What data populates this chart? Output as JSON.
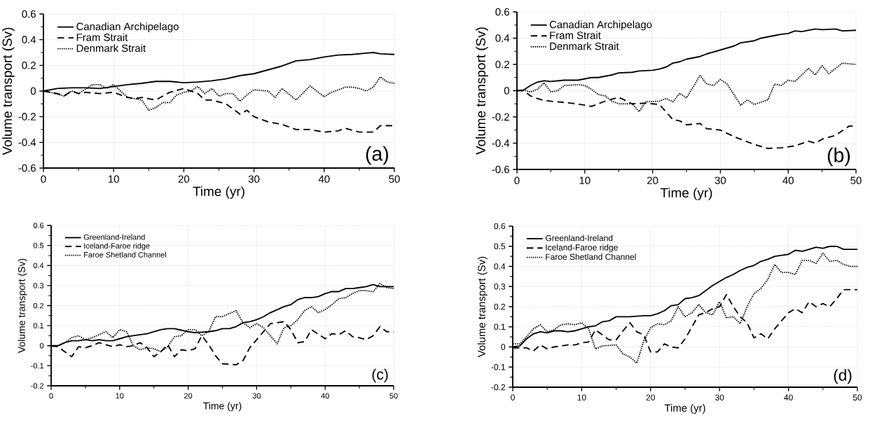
{
  "chart_data": [
    {
      "type": "line",
      "xlabel": "Time (yr)",
      "ylabel": "Volume transport (Sv)",
      "xlim": [
        0,
        50
      ],
      "ylim": [
        -0.6,
        0.6
      ],
      "xticks": [
        0,
        10,
        20,
        30,
        40,
        50
      ],
      "yticks": [
        -0.6,
        -0.4,
        -0.2,
        0,
        0.2,
        0.4,
        0.6
      ],
      "grid": true,
      "legend": "top left",
      "annotations": [
        "(a)"
      ],
      "series": [
        {
          "name": "Canadian Archipelago",
          "color": "#000000",
          "line_style": "solid",
          "x": [
            0,
            2,
            4,
            6,
            8,
            10,
            12,
            14,
            16,
            18,
            20,
            22,
            24,
            26,
            28,
            30,
            32,
            34,
            36,
            38,
            40,
            42,
            44,
            46,
            47,
            48,
            50
          ],
          "values": [
            0,
            0.02,
            0.025,
            0.025,
            0.02,
            0.035,
            0.05,
            0.06,
            0.075,
            0.075,
            0.065,
            0.07,
            0.08,
            0.095,
            0.12,
            0.135,
            0.165,
            0.195,
            0.235,
            0.245,
            0.265,
            0.28,
            0.285,
            0.295,
            0.3,
            0.29,
            0.285
          ]
        },
        {
          "name": "Fram Strait",
          "color": "#000000",
          "line_style": "dashed",
          "x": [
            0,
            2,
            3,
            4,
            5,
            6,
            8,
            10,
            12,
            13,
            14,
            16,
            18,
            20,
            22,
            23,
            24,
            26,
            28,
            29,
            30,
            32,
            34,
            36,
            38,
            40,
            42,
            43,
            45,
            47,
            48,
            50
          ],
          "values": [
            0,
            -0.02,
            -0.035,
            0,
            -0.02,
            -0.01,
            -0.02,
            -0.01,
            -0.05,
            -0.06,
            -0.05,
            -0.07,
            -0.01,
            0.02,
            -0.02,
            -0.07,
            -0.07,
            -0.1,
            -0.18,
            -0.15,
            -0.2,
            -0.24,
            -0.26,
            -0.3,
            -0.3,
            -0.32,
            -0.31,
            -0.29,
            -0.32,
            -0.32,
            -0.27,
            -0.27
          ]
        },
        {
          "name": "Denmark Strait",
          "color": "#000000",
          "line_style": "dotted",
          "x": [
            0,
            1,
            3,
            4,
            5,
            7,
            8,
            9,
            10,
            11,
            12,
            14,
            15,
            16,
            17,
            18,
            19,
            20,
            21,
            22,
            23,
            24,
            25,
            26,
            27,
            28,
            29,
            30,
            32,
            33,
            34,
            36,
            38,
            40,
            41,
            43,
            44,
            45,
            46,
            47,
            48,
            49,
            50
          ],
          "values": [
            0,
            -0.01,
            -0.04,
            0,
            -0.02,
            0.05,
            0.05,
            0.02,
            0.05,
            0,
            -0.05,
            -0.07,
            -0.15,
            -0.13,
            -0.09,
            -0.09,
            -0.03,
            -0.01,
            0,
            0.035,
            -0.02,
            0.02,
            -0.04,
            -0.02,
            -0.02,
            -0.08,
            -0.03,
            0.01,
            0,
            -0.05,
            0.02,
            -0.07,
            0.04,
            -0.045,
            -0.01,
            0.03,
            0.03,
            0.02,
            0,
            0.03,
            0.11,
            0.07,
            0.06
          ]
        }
      ]
    },
    {
      "type": "line",
      "xlabel": "Time (yr)",
      "ylabel": "Volume transport (Sv)",
      "xlim": [
        0,
        50
      ],
      "ylim": [
        -0.6,
        0.6
      ],
      "xticks": [
        0,
        10,
        20,
        30,
        40,
        50
      ],
      "yticks": [
        -0.6,
        -0.4,
        -0.2,
        0,
        0.2,
        0.4,
        0.6
      ],
      "grid": true,
      "legend": "top left",
      "annotations": [
        "(b)"
      ],
      "series": [
        {
          "name": "Canadian Archipelago",
          "color": "#000000",
          "line_style": "solid",
          "x": [
            0,
            1,
            2,
            3,
            4,
            5,
            7,
            9,
            11,
            12,
            14,
            15,
            17,
            18,
            20,
            21,
            22,
            23,
            24,
            25,
            27,
            28,
            30,
            32,
            33,
            35,
            36,
            38,
            39,
            40,
            41,
            42,
            44,
            45,
            47,
            48,
            50
          ],
          "values": [
            0,
            0.005,
            0.04,
            0.065,
            0.075,
            0.07,
            0.08,
            0.08,
            0.1,
            0.1,
            0.12,
            0.135,
            0.14,
            0.15,
            0.155,
            0.165,
            0.18,
            0.21,
            0.22,
            0.24,
            0.26,
            0.28,
            0.31,
            0.34,
            0.365,
            0.38,
            0.4,
            0.42,
            0.43,
            0.435,
            0.455,
            0.45,
            0.47,
            0.465,
            0.47,
            0.455,
            0.46
          ]
        },
        {
          "name": "Fram Strait",
          "color": "#000000",
          "line_style": "dashed",
          "x": [
            0,
            1,
            2,
            3,
            4,
            6,
            8,
            10,
            11,
            13,
            15,
            17,
            19,
            21,
            23,
            24,
            25,
            27,
            28,
            30,
            32,
            33,
            35,
            37,
            39,
            41,
            43,
            44,
            45,
            47,
            49,
            50
          ],
          "values": [
            0,
            0,
            -0.04,
            -0.06,
            -0.075,
            -0.085,
            -0.095,
            -0.11,
            -0.12,
            -0.08,
            -0.05,
            -0.1,
            -0.095,
            -0.105,
            -0.22,
            -0.23,
            -0.26,
            -0.25,
            -0.29,
            -0.3,
            -0.35,
            -0.37,
            -0.41,
            -0.44,
            -0.435,
            -0.42,
            -0.385,
            -0.4,
            -0.37,
            -0.34,
            -0.27,
            -0.27
          ]
        },
        {
          "name": "Denmark Strait",
          "color": "#000000",
          "line_style": "dotted",
          "x": [
            0,
            1,
            2,
            3,
            4,
            5,
            6,
            7,
            9,
            10,
            11,
            12,
            13,
            14,
            15,
            17,
            18,
            19,
            21,
            22,
            23,
            24,
            25,
            26,
            27,
            28,
            29,
            30,
            31,
            33,
            34,
            35,
            37,
            38,
            39,
            40,
            41,
            42,
            43,
            44,
            45,
            46,
            48,
            50
          ],
          "values": [
            0,
            0.005,
            -0.01,
            0.01,
            0.06,
            -0.01,
            0,
            0.04,
            0.045,
            0.04,
            0.01,
            -0.03,
            -0.04,
            -0.08,
            -0.1,
            -0.1,
            -0.16,
            -0.085,
            -0.08,
            -0.06,
            -0.085,
            -0.02,
            -0.055,
            0.03,
            0.115,
            0.05,
            0.04,
            0.085,
            0.05,
            -0.11,
            -0.07,
            -0.105,
            -0.07,
            0.05,
            0.04,
            0.08,
            0.07,
            0.12,
            0.17,
            0.12,
            0.19,
            0.13,
            0.21,
            0.2
          ]
        }
      ]
    },
    {
      "type": "line",
      "xlabel": "Time (yr)",
      "ylabel": "Volume transport (Sv)",
      "xlim": [
        0,
        50
      ],
      "ylim": [
        -0.2,
        0.6
      ],
      "xticks": [
        0,
        10,
        20,
        30,
        40,
        50
      ],
      "yticks": [
        -0.2,
        -0.1,
        0,
        0.1,
        0.2,
        0.3,
        0.4,
        0.5,
        0.6
      ],
      "grid": true,
      "legend": "top left",
      "annotations": [
        "(c)"
      ],
      "series": [
        {
          "name": "Greenland-Ireland",
          "color": "#000000",
          "line_style": "solid",
          "x": [
            0,
            1,
            2,
            3,
            4,
            5,
            6,
            7,
            8,
            9,
            10,
            11,
            12,
            14,
            16,
            17,
            18,
            20,
            21,
            23,
            24,
            25,
            26,
            27,
            28,
            29,
            30,
            31,
            32,
            33,
            34,
            35,
            36,
            37,
            38,
            39,
            40,
            41,
            42,
            43,
            44,
            45,
            46,
            47,
            48,
            50
          ],
          "values": [
            0,
            0,
            0.015,
            0.025,
            0.025,
            0.03,
            0.025,
            0.03,
            0.025,
            0.025,
            0.035,
            0.045,
            0.05,
            0.06,
            0.08,
            0.085,
            0.085,
            0.07,
            0.065,
            0.07,
            0.075,
            0.085,
            0.085,
            0.095,
            0.115,
            0.12,
            0.13,
            0.145,
            0.165,
            0.18,
            0.195,
            0.205,
            0.23,
            0.24,
            0.24,
            0.245,
            0.26,
            0.27,
            0.27,
            0.285,
            0.285,
            0.29,
            0.295,
            0.305,
            0.295,
            0.295
          ]
        },
        {
          "name": "Iceland-Faroe ridge",
          "color": "#000000",
          "line_style": "dashed",
          "x": [
            0,
            1,
            2,
            3,
            4,
            5,
            6,
            7,
            8,
            9,
            10,
            11,
            12,
            13,
            14,
            15,
            16,
            17,
            18,
            19,
            20,
            21,
            22,
            23,
            24,
            25,
            27,
            28,
            29,
            30,
            31,
            32,
            34,
            35,
            36,
            37,
            38,
            40,
            41,
            42,
            43,
            44,
            45,
            46,
            47,
            48,
            49,
            50
          ],
          "values": [
            0,
            -0.005,
            -0.03,
            -0.055,
            -0.005,
            -0.01,
            0,
            0.015,
            0.005,
            -0.005,
            0.005,
            -0.005,
            0,
            0.015,
            -0.01,
            -0.055,
            -0.03,
            0.005,
            -0.055,
            -0.02,
            -0.025,
            -0.015,
            0.05,
            0.005,
            -0.05,
            -0.09,
            -0.095,
            -0.075,
            -0.01,
            0.03,
            0.07,
            0.11,
            0.12,
            0.08,
            0.015,
            0.02,
            0.08,
            0.035,
            0.06,
            0.055,
            0.075,
            0.045,
            0.04,
            0.03,
            0.05,
            0.095,
            0.07,
            0.07
          ]
        },
        {
          "name": "Faroe Shetland Channel",
          "color": "#000000",
          "line_style": "dotted",
          "x": [
            0,
            1,
            2,
            3,
            4,
            5,
            6,
            7,
            8,
            9,
            10,
            11,
            12,
            13,
            14,
            15,
            16,
            17,
            18,
            19,
            20,
            21,
            22,
            23,
            24,
            25,
            26,
            27,
            28,
            29,
            30,
            31,
            32,
            33,
            34,
            35,
            36,
            37,
            38,
            39,
            40,
            41,
            42,
            43,
            44,
            45,
            46,
            47,
            48,
            49,
            50
          ],
          "values": [
            -0.005,
            0,
            0.015,
            0.04,
            0.05,
            0.03,
            0.04,
            0.055,
            0.07,
            0.04,
            0.08,
            0.07,
            0,
            -0.02,
            -0.01,
            -0.015,
            -0.03,
            -0.005,
            0.045,
            0.05,
            0.08,
            0.08,
            0.05,
            0.07,
            0.145,
            0.145,
            0.16,
            0.175,
            0.115,
            0.09,
            0.11,
            0.09,
            0.05,
            0.01,
            0.09,
            0.1,
            0.13,
            0.175,
            0.195,
            0.165,
            0.18,
            0.205,
            0.235,
            0.24,
            0.26,
            0.275,
            0.275,
            0.27,
            0.31,
            0.29,
            0.285
          ]
        }
      ]
    },
    {
      "type": "line",
      "xlabel": "Time (yr)",
      "ylabel": "Volume transport (Sv)",
      "xlim": [
        0,
        50
      ],
      "ylim": [
        -0.2,
        0.6
      ],
      "xticks": [
        0,
        10,
        20,
        30,
        40,
        50
      ],
      "yticks": [
        -0.2,
        -0.1,
        0,
        0.1,
        0.2,
        0.3,
        0.4,
        0.5,
        0.6
      ],
      "grid": true,
      "legend": "top left",
      "annotations": [
        "(d)"
      ],
      "series": [
        {
          "name": "Greenland-Ireland",
          "color": "#000000",
          "line_style": "solid",
          "x": [
            0,
            1,
            2,
            3,
            4,
            5,
            6,
            7,
            8,
            9,
            10,
            11,
            12,
            13,
            14,
            15,
            17,
            19,
            20,
            21,
            22,
            23,
            24,
            25,
            26,
            27,
            28,
            29,
            30,
            31,
            32,
            33,
            34,
            35,
            36,
            37,
            38,
            39,
            40,
            41,
            42,
            43,
            44,
            45,
            46,
            47,
            48,
            50
          ],
          "values": [
            0,
            0.005,
            0.04,
            0.065,
            0.075,
            0.07,
            0.08,
            0.08,
            0.075,
            0.08,
            0.09,
            0.1,
            0.105,
            0.125,
            0.13,
            0.15,
            0.15,
            0.155,
            0.155,
            0.165,
            0.18,
            0.205,
            0.21,
            0.24,
            0.245,
            0.255,
            0.28,
            0.305,
            0.325,
            0.345,
            0.36,
            0.38,
            0.395,
            0.405,
            0.425,
            0.435,
            0.45,
            0.455,
            0.46,
            0.48,
            0.475,
            0.485,
            0.495,
            0.49,
            0.5,
            0.5,
            0.485,
            0.485
          ]
        },
        {
          "name": "Iceland-Faroe ridge",
          "color": "#000000",
          "line_style": "dashed",
          "x": [
            0,
            1,
            2,
            3,
            4,
            5,
            6,
            7,
            8,
            9,
            10,
            11,
            12,
            13,
            14,
            15,
            16,
            17,
            18,
            19,
            20,
            21,
            22,
            23,
            24,
            25,
            26,
            27,
            28,
            29,
            30,
            31,
            32,
            33,
            34,
            35,
            36,
            37,
            38,
            39,
            40,
            41,
            42,
            43,
            44,
            45,
            46,
            47,
            48,
            50
          ],
          "values": [
            -0.005,
            -0.005,
            -0.005,
            -0.02,
            0.01,
            -0.01,
            0,
            0.005,
            0.01,
            0.01,
            0.02,
            0.025,
            0.085,
            0.06,
            0.035,
            0.035,
            0.08,
            0.12,
            0.075,
            0.06,
            -0.025,
            -0.025,
            0.015,
            0,
            -0.005,
            0.04,
            0.1,
            0.16,
            0.17,
            0.19,
            0.2,
            0.26,
            0.2,
            0.15,
            0.12,
            0.045,
            0.065,
            0.04,
            0.09,
            0.13,
            0.17,
            0.19,
            0.17,
            0.225,
            0.2,
            0.215,
            0.2,
            0.24,
            0.285,
            0.285
          ]
        },
        {
          "name": "Faroe Shetland Channel",
          "color": "#000000",
          "line_style": "dotted",
          "x": [
            0,
            1,
            2,
            3,
            4,
            5,
            6,
            7,
            8,
            9,
            10,
            11,
            12,
            13,
            15,
            16,
            17,
            18,
            19,
            20,
            21,
            22,
            23,
            24,
            25,
            26,
            27,
            28,
            29,
            30,
            31,
            32,
            33,
            34,
            35,
            36,
            37,
            38,
            39,
            40,
            41,
            42,
            43,
            44,
            45,
            46,
            47,
            48,
            49,
            50
          ],
          "values": [
            0.015,
            0.015,
            0.05,
            0.09,
            0.11,
            0.075,
            0.085,
            0.11,
            0.115,
            0.11,
            0.12,
            0.09,
            -0.01,
            0.005,
            0.01,
            -0.035,
            -0.05,
            -0.08,
            0.03,
            0.095,
            0.115,
            0.11,
            0.13,
            0.2,
            0.15,
            0.17,
            0.21,
            0.17,
            0.16,
            0.225,
            0.145,
            0.15,
            0.115,
            0.2,
            0.265,
            0.29,
            0.335,
            0.41,
            0.37,
            0.37,
            0.36,
            0.43,
            0.43,
            0.415,
            0.465,
            0.425,
            0.43,
            0.41,
            0.4,
            0.4
          ]
        }
      ]
    }
  ]
}
